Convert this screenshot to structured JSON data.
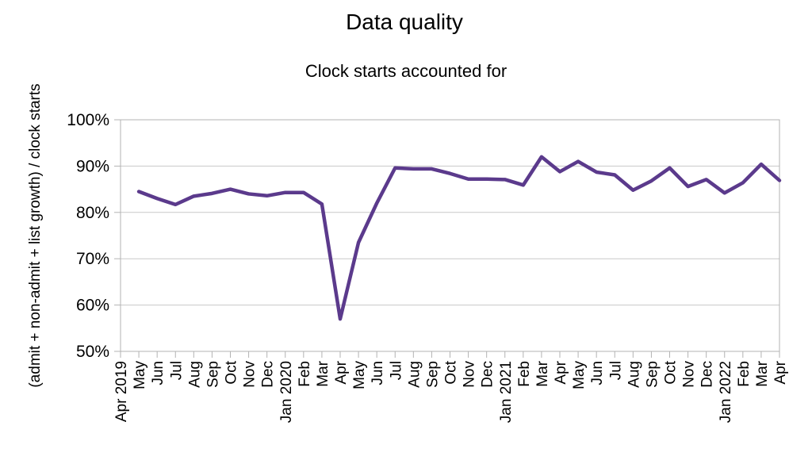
{
  "chart_data": {
    "type": "line",
    "title": "Data quality",
    "subtitle": "Clock starts accounted for",
    "xlabel": "",
    "ylabel": "(admit + non-admit + list growth) / clock starts",
    "ylim": [
      50,
      100
    ],
    "ytick_labels": [
      "50%",
      "60%",
      "70%",
      "80%",
      "90%",
      "100%"
    ],
    "grid": true,
    "legend": "none",
    "x": [
      "Apr 2019",
      "May",
      "Jun",
      "Jul",
      "Aug",
      "Sep",
      "Oct",
      "Nov",
      "Dec",
      "Jan 2020",
      "Feb",
      "Mar",
      "Apr",
      "May",
      "Jun",
      "Jul",
      "Aug",
      "Sep",
      "Oct",
      "Nov",
      "Dec",
      "Jan 2021",
      "Feb",
      "Mar",
      "Apr",
      "May",
      "Jun",
      "Jul",
      "Aug",
      "Sep",
      "Oct",
      "Nov",
      "Dec",
      "Jan 2022",
      "Feb",
      "Mar",
      "Apr"
    ],
    "series": [
      {
        "color": "#5b3a8c",
        "values": [
          null,
          84.5,
          83,
          81.7,
          83.5,
          84.1,
          85,
          84,
          83.6,
          84.3,
          84.3,
          81.8,
          57,
          73.5,
          82,
          89.6,
          89.4,
          89.4,
          88.4,
          87.2,
          87.2,
          87.1,
          85.9,
          92,
          88.8,
          91,
          88.7,
          88.1,
          84.8,
          86.8,
          89.6,
          85.6,
          87.1,
          84.2,
          86.4,
          90.4,
          86.9
        ]
      }
    ]
  }
}
